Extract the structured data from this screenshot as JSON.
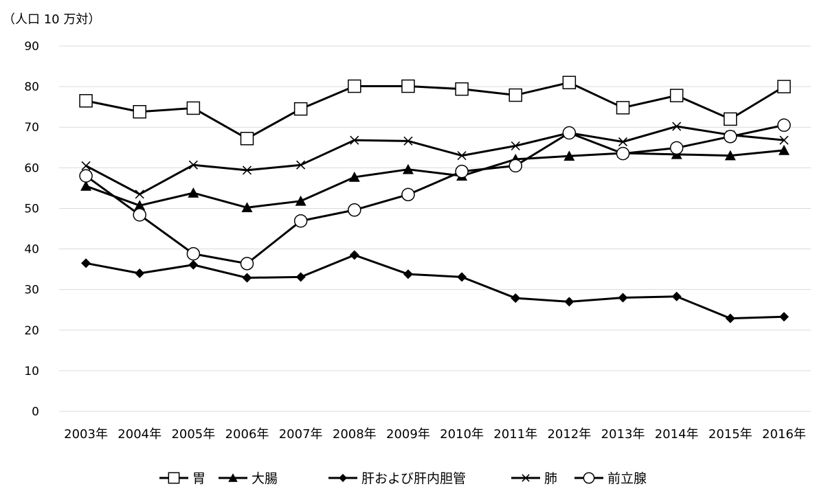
{
  "chart_data": {
    "type": "line",
    "unit_label": "（人口 10 万対）",
    "categories": [
      "2003年",
      "2004年",
      "2005年",
      "2006年",
      "2007年",
      "2008年",
      "2009年",
      "2010年",
      "2011年",
      "2012年",
      "2013年",
      "2014年",
      "2015年",
      "2016年"
    ],
    "ylim": [
      0,
      90
    ],
    "yticks": [
      0,
      10,
      20,
      30,
      40,
      50,
      60,
      70,
      80,
      90
    ],
    "grid": true,
    "legend_position": "bottom",
    "series": [
      {
        "name": "胃",
        "marker": "open-square",
        "values": [
          76.5,
          73.8,
          74.7,
          67.2,
          74.5,
          80.1,
          80.1,
          79.4,
          77.9,
          81.0,
          74.8,
          77.8,
          72.0,
          80.0
        ]
      },
      {
        "name": "大腸",
        "marker": "filled-triangle",
        "values": [
          55.5,
          50.7,
          53.8,
          50.2,
          51.8,
          57.7,
          59.6,
          58.0,
          62.1,
          62.9,
          63.6,
          63.3,
          63.0,
          64.3
        ]
      },
      {
        "name": "肝および肝内胆管",
        "marker": "filled-diamond",
        "values": [
          36.5,
          34.0,
          36.1,
          32.9,
          33.1,
          38.5,
          33.8,
          33.1,
          27.9,
          27.0,
          28.0,
          28.3,
          22.9,
          23.3
        ]
      },
      {
        "name": "肺",
        "marker": "x",
        "values": [
          60.5,
          53.5,
          60.7,
          59.4,
          60.7,
          66.8,
          66.6,
          63.0,
          65.4,
          68.6,
          66.4,
          70.2,
          68.1,
          66.8
        ]
      },
      {
        "name": "前立腺",
        "marker": "open-circle",
        "values": [
          58.0,
          48.4,
          38.8,
          36.4,
          46.9,
          49.6,
          53.4,
          59.1,
          60.5,
          68.6,
          63.5,
          64.9,
          67.7,
          70.5
        ]
      }
    ]
  }
}
